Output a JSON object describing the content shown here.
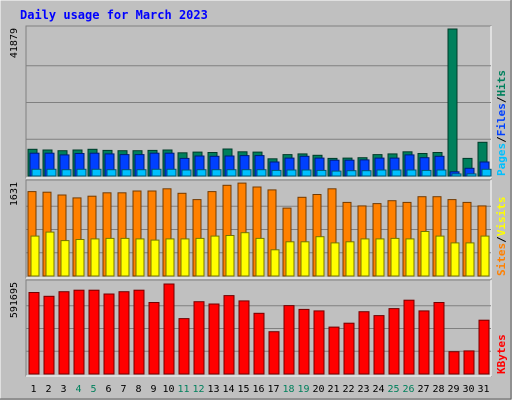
{
  "title": "Daily usage for March 2023",
  "colors": {
    "background": "#C0C0C0",
    "title": "#0000FF",
    "hits": "#00805C",
    "files": "#0040FF",
    "pages": "#00C0FF",
    "visits": "#FFFF00",
    "sites": "#FF8000",
    "kbytes": "#FF0000",
    "grid": "#808080",
    "weekend_day": "#00805C",
    "weekday": "#000000"
  },
  "chart_data": [
    {
      "type": "bar",
      "panel": "hits",
      "max_label": "41879",
      "ylim": [
        0,
        41879
      ],
      "grid": true,
      "legend": [
        {
          "label": "Pages",
          "color": "#00C0FF"
        },
        {
          "label": "Files",
          "color": "#0040FF"
        },
        {
          "label": "Hits",
          "color": "#00805C"
        }
      ],
      "categories": [
        "1",
        "2",
        "3",
        "4",
        "5",
        "6",
        "7",
        "8",
        "9",
        "10",
        "11",
        "12",
        "13",
        "14",
        "15",
        "16",
        "17",
        "18",
        "19",
        "20",
        "21",
        "22",
        "23",
        "24",
        "25",
        "26",
        "27",
        "28",
        "29",
        "30",
        "31"
      ],
      "series": [
        {
          "name": "Hits",
          "values": [
            7600,
            7400,
            7200,
            7400,
            7600,
            7300,
            7200,
            7200,
            7300,
            7400,
            6600,
            6800,
            6700,
            7700,
            6900,
            6800,
            4900,
            6100,
            6300,
            5900,
            5000,
            5100,
            5200,
            6100,
            6300,
            6900,
            6400,
            6700,
            41879,
            5000,
            9600
          ]
        },
        {
          "name": "Files",
          "values": [
            6500,
            6500,
            6000,
            6400,
            6500,
            6300,
            6100,
            6100,
            6500,
            6500,
            5000,
            5700,
            5600,
            5700,
            5800,
            5800,
            4000,
            5100,
            5600,
            5100,
            4500,
            4500,
            4600,
            5100,
            5100,
            6000,
            5200,
            5600,
            1200,
            2200,
            4000
          ]
        },
        {
          "name": "Pages",
          "values": [
            1900,
            1900,
            1800,
            1900,
            1900,
            1800,
            1800,
            1800,
            1900,
            1900,
            1700,
            1800,
            1800,
            1800,
            1800,
            1800,
            1600,
            1700,
            1700,
            1600,
            1400,
            1500,
            1500,
            1700,
            1700,
            1700,
            1600,
            1700,
            600,
            600,
            1900
          ]
        }
      ]
    },
    {
      "type": "bar",
      "panel": "visits",
      "max_label": "1631",
      "ylim": [
        0,
        1631
      ],
      "grid": true,
      "legend": [
        {
          "label": "Sites",
          "color": "#FF8000"
        },
        {
          "label": "Visits",
          "color": "#FFFF00"
        }
      ],
      "categories": [
        "1",
        "2",
        "3",
        "4",
        "5",
        "6",
        "7",
        "8",
        "9",
        "10",
        "11",
        "12",
        "13",
        "14",
        "15",
        "16",
        "17",
        "18",
        "19",
        "20",
        "21",
        "22",
        "23",
        "24",
        "25",
        "26",
        "27",
        "28",
        "29",
        "30",
        "31"
      ],
      "series": [
        {
          "name": "Sites",
          "values": [
            1480,
            1470,
            1420,
            1370,
            1400,
            1460,
            1460,
            1490,
            1490,
            1530,
            1450,
            1340,
            1480,
            1590,
            1630,
            1560,
            1510,
            1190,
            1380,
            1430,
            1530,
            1290,
            1230,
            1270,
            1320,
            1290,
            1390,
            1390,
            1340,
            1290,
            1230
          ]
        },
        {
          "name": "Visits",
          "values": [
            700,
            770,
            620,
            640,
            650,
            660,
            660,
            650,
            630,
            650,
            650,
            660,
            700,
            710,
            760,
            660,
            460,
            600,
            600,
            690,
            580,
            600,
            650,
            650,
            660,
            650,
            780,
            700,
            580,
            580,
            700
          ]
        }
      ]
    },
    {
      "type": "bar",
      "panel": "kbytes",
      "max_label": "591695",
      "ylim": [
        0,
        591695
      ],
      "grid": true,
      "legend": [
        {
          "label": "KBytes",
          "color": "#FF0000"
        }
      ],
      "categories": [
        "1",
        "2",
        "3",
        "4",
        "5",
        "6",
        "7",
        "8",
        "9",
        "10",
        "11",
        "12",
        "13",
        "14",
        "15",
        "16",
        "17",
        "18",
        "19",
        "20",
        "21",
        "22",
        "23",
        "24",
        "25",
        "26",
        "27",
        "28",
        "29",
        "30",
        "31"
      ],
      "series": [
        {
          "name": "KBytes",
          "values": [
            530000,
            505000,
            535000,
            545000,
            545000,
            520000,
            535000,
            545000,
            465000,
            585000,
            360000,
            470000,
            455000,
            510000,
            475000,
            395000,
            275000,
            445000,
            420000,
            410000,
            305000,
            330000,
            405000,
            380000,
            425000,
            480000,
            410000,
            465000,
            145000,
            150000,
            350000
          ]
        }
      ]
    }
  ],
  "x_axis": {
    "labels": [
      "1",
      "2",
      "3",
      "4",
      "5",
      "6",
      "7",
      "8",
      "9",
      "10",
      "11",
      "12",
      "13",
      "14",
      "15",
      "16",
      "17",
      "18",
      "19",
      "20",
      "21",
      "22",
      "23",
      "24",
      "25",
      "26",
      "27",
      "28",
      "29",
      "30",
      "31"
    ],
    "weekend": [
      4,
      5,
      11,
      12,
      18,
      19,
      25,
      26
    ]
  }
}
